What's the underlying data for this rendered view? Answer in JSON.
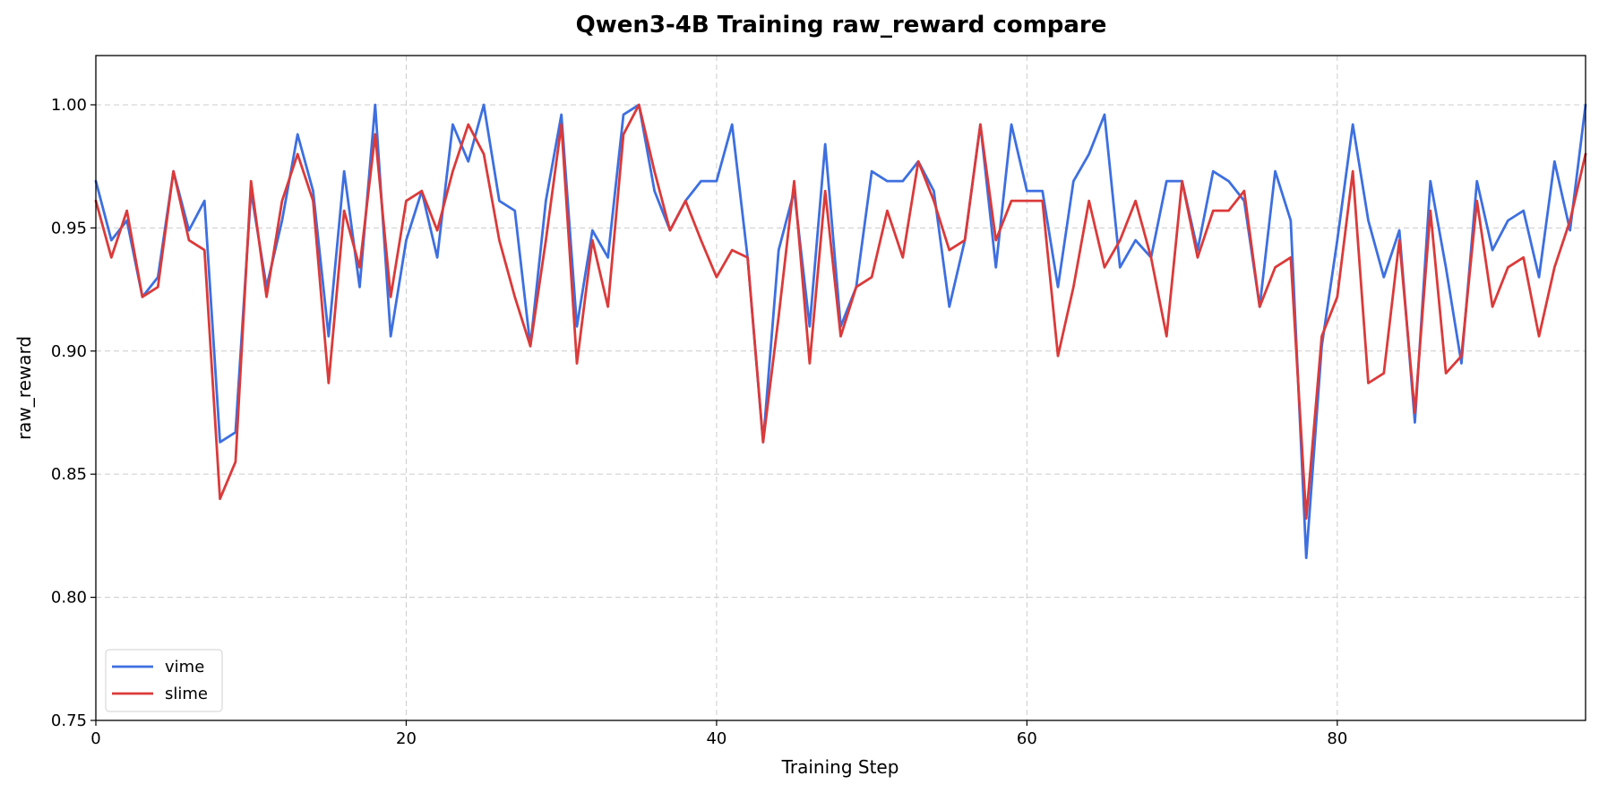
{
  "chart_data": {
    "type": "line",
    "title": "Qwen3-4B Training raw_reward compare",
    "xlabel": "Training Step",
    "ylabel": "raw_reward",
    "xlim": [
      0,
      96
    ],
    "ylim": [
      0.75,
      1.02
    ],
    "xticks": [
      0,
      20,
      40,
      60,
      80
    ],
    "xtick_labels": [
      "0",
      "20",
      "40",
      "60",
      "80"
    ],
    "yticks": [
      0.75,
      0.8,
      0.85,
      0.9,
      0.95,
      1.0
    ],
    "ytick_labels": [
      "0.75",
      "0.80",
      "0.85",
      "0.90",
      "0.95",
      "1.00"
    ],
    "grid": true,
    "legend_position": "bottom-left",
    "series": [
      {
        "name": "vime",
        "color": "#3d6fe0",
        "x": [
          0,
          1,
          2,
          3,
          4,
          5,
          6,
          7,
          8,
          9,
          10,
          11,
          12,
          13,
          14,
          15,
          16,
          17,
          18,
          19,
          20,
          21,
          22,
          23,
          24,
          25,
          26,
          27,
          28,
          29,
          30,
          31,
          32,
          33,
          34,
          35,
          36,
          37,
          38,
          39,
          40,
          41,
          42,
          43,
          44,
          45,
          46,
          47,
          48,
          49,
          50,
          51,
          52,
          53,
          54,
          55,
          56,
          57,
          58,
          59,
          60,
          61,
          62,
          63,
          64,
          65,
          66,
          67,
          68,
          69,
          70,
          71,
          72,
          73,
          74,
          75,
          76,
          77,
          78,
          79,
          80,
          81,
          82,
          83,
          84,
          85,
          86,
          87,
          88,
          89,
          90,
          91,
          92,
          93,
          94,
          95,
          96
        ],
        "values": [
          0.969,
          0.945,
          0.953,
          0.922,
          0.93,
          0.973,
          0.949,
          0.961,
          0.863,
          0.867,
          0.965,
          0.926,
          0.953,
          0.988,
          0.965,
          0.906,
          0.973,
          0.926,
          1.0,
          0.906,
          0.945,
          0.965,
          0.938,
          0.992,
          0.977,
          1.0,
          0.961,
          0.957,
          0.902,
          0.961,
          0.996,
          0.91,
          0.949,
          0.938,
          0.996,
          1.0,
          0.965,
          0.949,
          0.961,
          0.969,
          0.969,
          0.992,
          0.938,
          0.863,
          0.941,
          0.965,
          0.91,
          0.984,
          0.91,
          0.926,
          0.973,
          0.969,
          0.969,
          0.977,
          0.965,
          0.918,
          0.945,
          0.992,
          0.934,
          0.992,
          0.965,
          0.965,
          0.926,
          0.969,
          0.98,
          0.996,
          0.934,
          0.945,
          0.938,
          0.969,
          0.969,
          0.941,
          0.973,
          0.969,
          0.961,
          0.918,
          0.973,
          0.953,
          0.816,
          0.902,
          0.945,
          0.992,
          0.953,
          0.93,
          0.949,
          0.871,
          0.969,
          0.934,
          0.895,
          0.969,
          0.941,
          0.953,
          0.957,
          0.93,
          0.977,
          0.949,
          1.0
        ]
      },
      {
        "name": "slime",
        "color": "#db3a3a",
        "x": [
          0,
          1,
          2,
          3,
          4,
          5,
          6,
          7,
          8,
          9,
          10,
          11,
          12,
          13,
          14,
          15,
          16,
          17,
          18,
          19,
          20,
          21,
          22,
          23,
          24,
          25,
          26,
          27,
          28,
          29,
          30,
          31,
          32,
          33,
          34,
          35,
          36,
          37,
          38,
          39,
          40,
          41,
          42,
          43,
          44,
          45,
          46,
          47,
          48,
          49,
          50,
          51,
          52,
          53,
          54,
          55,
          56,
          57,
          58,
          59,
          60,
          61,
          62,
          63,
          64,
          65,
          66,
          67,
          68,
          69,
          70,
          71,
          72,
          73,
          74,
          75,
          76,
          77,
          78,
          79,
          80,
          81,
          82,
          83,
          84,
          85,
          86,
          87,
          88,
          89,
          90,
          91,
          92,
          93,
          94,
          95,
          96
        ],
        "values": [
          0.961,
          0.938,
          0.957,
          0.922,
          0.926,
          0.973,
          0.945,
          0.941,
          0.84,
          0.855,
          0.969,
          0.922,
          0.961,
          0.98,
          0.961,
          0.887,
          0.957,
          0.934,
          0.988,
          0.922,
          0.961,
          0.965,
          0.949,
          0.973,
          0.992,
          0.98,
          0.945,
          0.922,
          0.902,
          0.945,
          0.992,
          0.895,
          0.945,
          0.918,
          0.988,
          1.0,
          0.973,
          0.949,
          0.961,
          0.945,
          0.93,
          0.941,
          0.938,
          0.863,
          0.914,
          0.969,
          0.895,
          0.965,
          0.906,
          0.926,
          0.93,
          0.957,
          0.938,
          0.977,
          0.961,
          0.941,
          0.945,
          0.992,
          0.945,
          0.961,
          0.961,
          0.961,
          0.898,
          0.926,
          0.961,
          0.934,
          0.945,
          0.961,
          0.938,
          0.906,
          0.969,
          0.938,
          0.957,
          0.957,
          0.965,
          0.918,
          0.934,
          0.938,
          0.832,
          0.906,
          0.922,
          0.973,
          0.887,
          0.891,
          0.945,
          0.875,
          0.957,
          0.891,
          0.898,
          0.961,
          0.918,
          0.934,
          0.938,
          0.906,
          0.934,
          0.953,
          0.98
        ]
      }
    ]
  }
}
